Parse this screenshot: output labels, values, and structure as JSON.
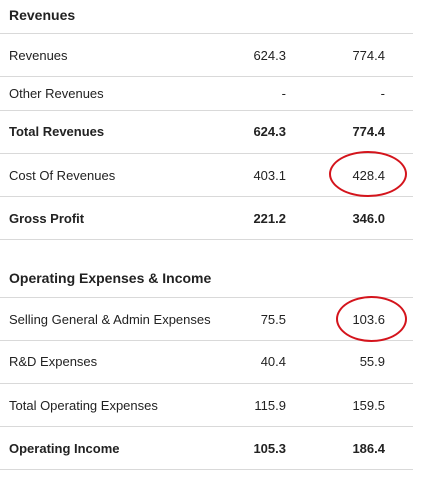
{
  "sections": [
    {
      "title": "Revenues",
      "rows": [
        {
          "label": "Revenues",
          "v1": "624.3",
          "v2": "774.4",
          "bold": false
        },
        {
          "label": "Other Revenues",
          "v1": "-",
          "v2": "-",
          "bold": false
        },
        {
          "label": "Total Revenues",
          "v1": "624.3",
          "v2": "774.4",
          "bold": true
        },
        {
          "label": "Cost Of Revenues",
          "v1": "403.1",
          "v2": "428.4",
          "bold": false
        },
        {
          "label": "Gross Profit",
          "v1": "221.2",
          "v2": "346.0",
          "bold": true
        }
      ]
    },
    {
      "title": "Operating Expenses & Income",
      "rows": [
        {
          "label": "Selling General & Admin Expenses",
          "v1": "75.5",
          "v2": "103.6",
          "bold": false
        },
        {
          "label": "R&D Expenses",
          "v1": "40.4",
          "v2": "55.9",
          "bold": false
        },
        {
          "label": "Total Operating Expenses",
          "v1": "115.9",
          "v2": "159.5",
          "bold": false
        },
        {
          "label": "Operating Income",
          "v1": "105.3",
          "v2": "186.4",
          "bold": true
        }
      ]
    }
  ],
  "annotation_color": "#d4141c"
}
